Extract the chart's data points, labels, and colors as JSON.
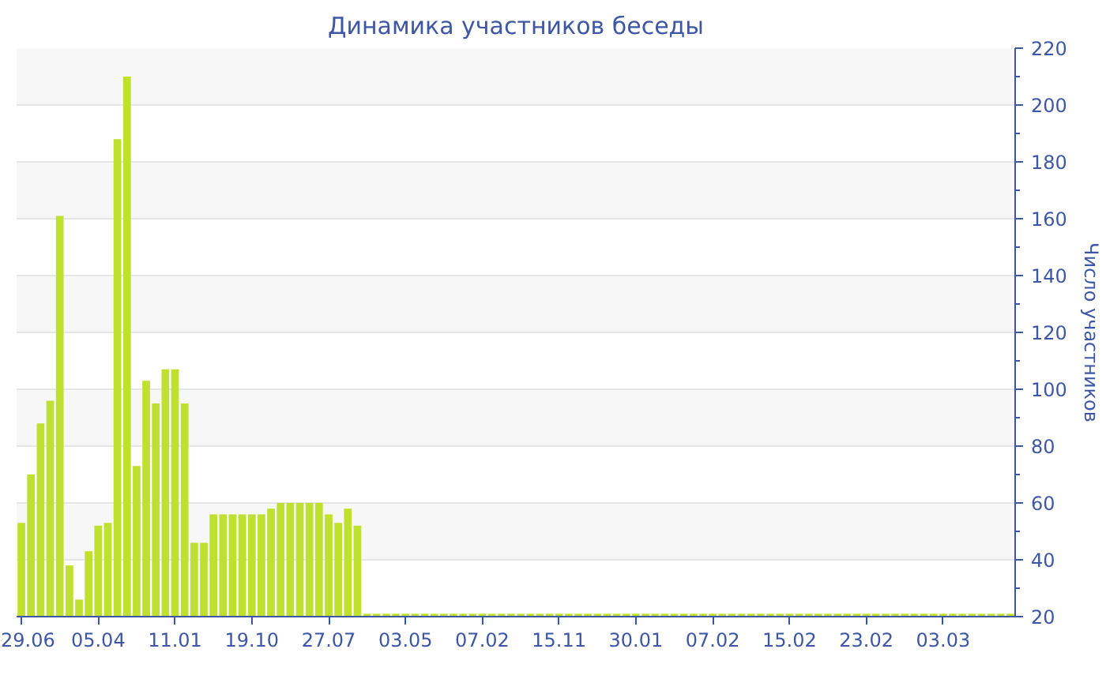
{
  "chart_data": {
    "type": "bar",
    "title": "Динамика участников беседы",
    "ylabel": "Число участников",
    "categories": [
      "29.06",
      null,
      null,
      null,
      null,
      null,
      null,
      null,
      "05.04",
      null,
      null,
      null,
      null,
      null,
      null,
      null,
      "11.01",
      null,
      null,
      null,
      null,
      null,
      null,
      null,
      "19.10",
      null,
      null,
      null,
      null,
      null,
      null,
      null,
      "27.07",
      null,
      null,
      null,
      null,
      null,
      null,
      null,
      "03.05",
      null,
      null,
      null,
      null,
      null,
      null,
      null,
      "07.02",
      null,
      null,
      null,
      null,
      null,
      null,
      null,
      "15.11",
      null,
      null,
      null,
      null,
      null,
      null,
      null,
      "30.01",
      null,
      null,
      null,
      null,
      null,
      null,
      null,
      "07.02",
      null,
      null,
      null,
      null,
      null,
      null,
      null,
      "15.02",
      null,
      null,
      null,
      null,
      null,
      null,
      null,
      "23.02",
      null,
      null,
      null,
      null,
      null,
      null,
      null,
      "03.03",
      null,
      null,
      null,
      null,
      null,
      null,
      null
    ],
    "values": [
      53,
      70,
      88,
      96,
      161,
      38,
      26,
      43,
      52,
      53,
      188,
      210,
      73,
      103,
      95,
      107,
      107,
      95,
      46,
      46,
      56,
      56,
      56,
      56,
      56,
      56,
      58,
      60,
      60,
      60,
      60,
      60,
      56,
      53,
      58,
      52,
      21,
      21,
      21,
      21,
      21,
      21,
      21,
      21,
      21,
      21,
      21,
      21,
      21,
      21,
      21,
      21,
      21,
      21,
      21,
      21,
      21,
      21,
      21,
      21,
      21,
      21,
      21,
      21,
      21,
      21,
      21,
      21,
      21,
      21,
      21,
      21,
      21,
      21,
      21,
      21,
      21,
      21,
      21,
      21,
      21,
      21,
      21,
      21,
      21,
      21,
      21,
      21,
      21,
      21,
      21,
      21,
      21,
      21,
      21,
      21,
      21,
      21,
      21,
      21,
      21,
      21,
      21,
      21
    ],
    "color": "#bfe02e",
    "ylim": [
      20,
      220
    ],
    "yticks": [
      20,
      40,
      60,
      80,
      100,
      120,
      140,
      160,
      180,
      200,
      220
    ],
    "grid": "y"
  }
}
